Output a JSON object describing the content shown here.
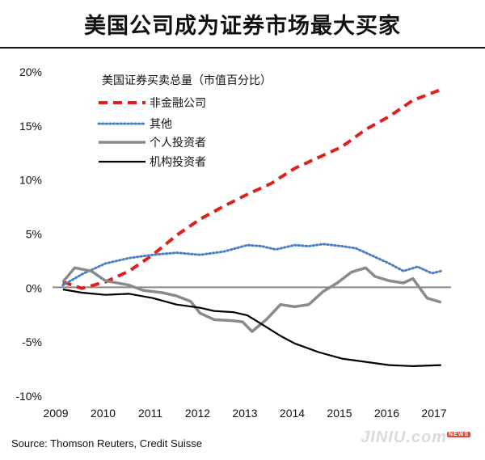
{
  "title": "美国公司成为证券市场最大买家",
  "source": "Source: Thomson Reuters, Credit Suisse",
  "watermark": {
    "text": "JINIU",
    "suffix": ".com",
    "badge": "NEWS"
  },
  "colors": {
    "nonfinancial": "#e0201b",
    "other": "#4a7fc1",
    "individual": "#8a8a8a",
    "institutional": "#000000",
    "zero_line": "#888888"
  },
  "chart_data": {
    "type": "line",
    "legend_title": "美国证券买卖总量（市值百分比）",
    "legend_position": "top-left",
    "grid": false,
    "xlim": [
      2009,
      2017.5
    ],
    "ylim": [
      -10,
      20
    ],
    "x_ticks": [
      "2009",
      "2010",
      "2011",
      "2012",
      "2013",
      "2014",
      "2015",
      "2016",
      "2017"
    ],
    "y_ticks": [
      "20%",
      "15%",
      "10%",
      "5%",
      "0%",
      "-5%",
      "-10%"
    ],
    "series": [
      {
        "name": "非金融公司",
        "style": "dashed",
        "x": [
          2009.1,
          2009.5,
          2010.0,
          2010.5,
          2011.0,
          2011.5,
          2012.0,
          2012.5,
          2013.0,
          2013.5,
          2014.0,
          2014.5,
          2015.0,
          2015.5,
          2016.0,
          2016.5,
          2017.1
        ],
        "y": [
          0.5,
          -0.1,
          0.5,
          1.5,
          3.0,
          4.8,
          6.3,
          7.5,
          8.6,
          9.6,
          11.0,
          12.0,
          13.0,
          14.6,
          15.8,
          17.3,
          18.3
        ]
      },
      {
        "name": "其他",
        "style": "dotted",
        "x": [
          2009.1,
          2009.5,
          2010.0,
          2010.5,
          2011.0,
          2011.5,
          2012.0,
          2012.5,
          2013.0,
          2013.3,
          2013.6,
          2014.0,
          2014.3,
          2014.6,
          2015.0,
          2015.3,
          2015.6,
          2016.0,
          2016.3,
          2016.6,
          2016.9,
          2017.1
        ],
        "y": [
          0.2,
          1.2,
          2.2,
          2.7,
          3.0,
          3.2,
          3.0,
          3.3,
          3.9,
          3.8,
          3.5,
          3.9,
          3.8,
          4.0,
          3.8,
          3.6,
          3.0,
          2.2,
          1.5,
          1.9,
          1.3,
          1.5
        ]
      },
      {
        "name": "个人投资者",
        "style": "solid",
        "x": [
          2009.1,
          2009.35,
          2009.7,
          2010.0,
          2010.5,
          2010.8,
          2011.2,
          2011.5,
          2011.8,
          2012.0,
          2012.3,
          2012.7,
          2012.9,
          2013.1,
          2013.4,
          2013.7,
          2014.0,
          2014.3,
          2014.6,
          2014.9,
          2015.2,
          2015.5,
          2015.7,
          2016.0,
          2016.3,
          2016.5,
          2016.8,
          2017.1
        ],
        "y": [
          0.5,
          1.8,
          1.5,
          0.6,
          0.2,
          -0.3,
          -0.5,
          -0.8,
          -1.3,
          -2.4,
          -3.0,
          -3.1,
          -3.2,
          -4.1,
          -3.0,
          -1.6,
          -1.8,
          -1.6,
          -0.4,
          0.4,
          1.4,
          1.8,
          1.0,
          0.6,
          0.4,
          0.8,
          -1.0,
          -1.4
        ]
      },
      {
        "name": "机构投资者",
        "style": "solid",
        "x": [
          2009.1,
          2009.5,
          2010.0,
          2010.5,
          2011.0,
          2011.5,
          2012.0,
          2012.3,
          2012.7,
          2013.0,
          2013.3,
          2013.7,
          2014.0,
          2014.5,
          2015.0,
          2015.5,
          2016.0,
          2016.5,
          2017.1
        ],
        "y": [
          -0.2,
          -0.5,
          -0.7,
          -0.6,
          -1.0,
          -1.6,
          -1.9,
          -2.2,
          -2.3,
          -2.6,
          -3.4,
          -4.5,
          -5.2,
          -6.0,
          -6.6,
          -6.9,
          -7.2,
          -7.3,
          -7.2
        ]
      }
    ]
  }
}
